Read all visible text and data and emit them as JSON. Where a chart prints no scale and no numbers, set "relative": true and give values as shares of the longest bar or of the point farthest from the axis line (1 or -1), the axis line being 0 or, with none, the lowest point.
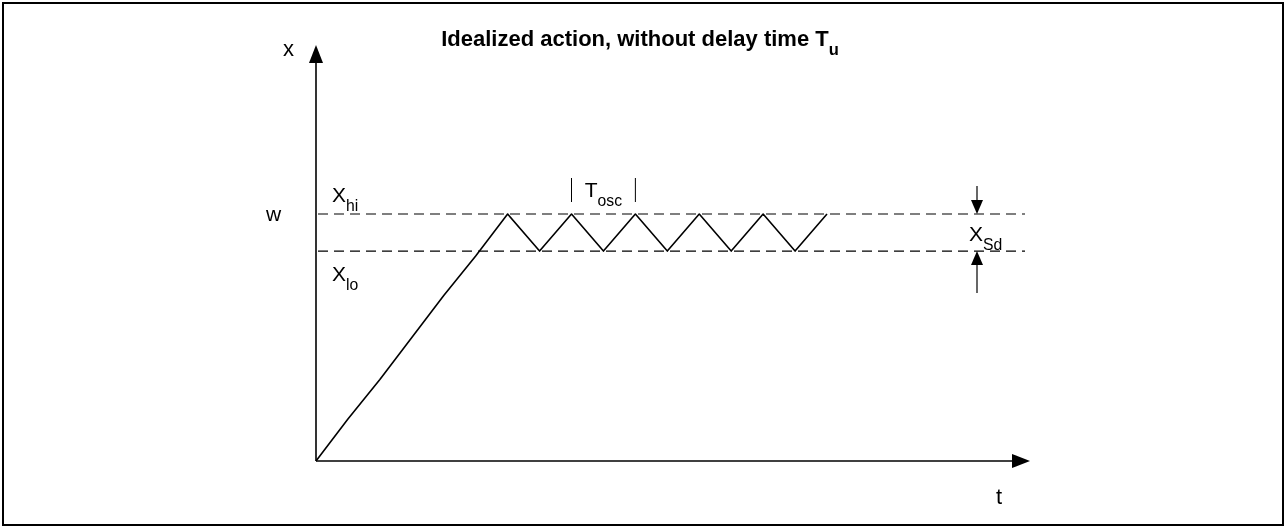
{
  "chart_data": {
    "type": "line",
    "relative": true,
    "title": "Idealized action, without delay time T$_{u}$",
    "categories": [
      null,
      null,
      null,
      null,
      null,
      null,
      null,
      null,
      null,
      null,
      null,
      null,
      null,
      null,
      null,
      null,
      null
    ],
    "series": [
      {
        "color": "#000000",
        "values": [
          0,
          0.17,
          0.33,
          0.5,
          0.67,
          0.83,
          1,
          0.85,
          1,
          0.85,
          1,
          0.85,
          1,
          0.85,
          1,
          0.85,
          1
        ]
      }
    ],
    "ref_lines": [
      {
        "axis": "y",
        "value": 1,
        "label": "X$_{hi}$",
        "line_style": "dashed",
        "color": "#000000"
      },
      {
        "axis": "y",
        "value": 0.85,
        "label": "X$_{lo}$",
        "line_style": "dashed",
        "color": "#000000"
      }
    ],
    "annotations": [
      "w",
      "T$_{osc}$",
      "X$_{Sd}$",
      "x",
      "t"
    ]
  }
}
